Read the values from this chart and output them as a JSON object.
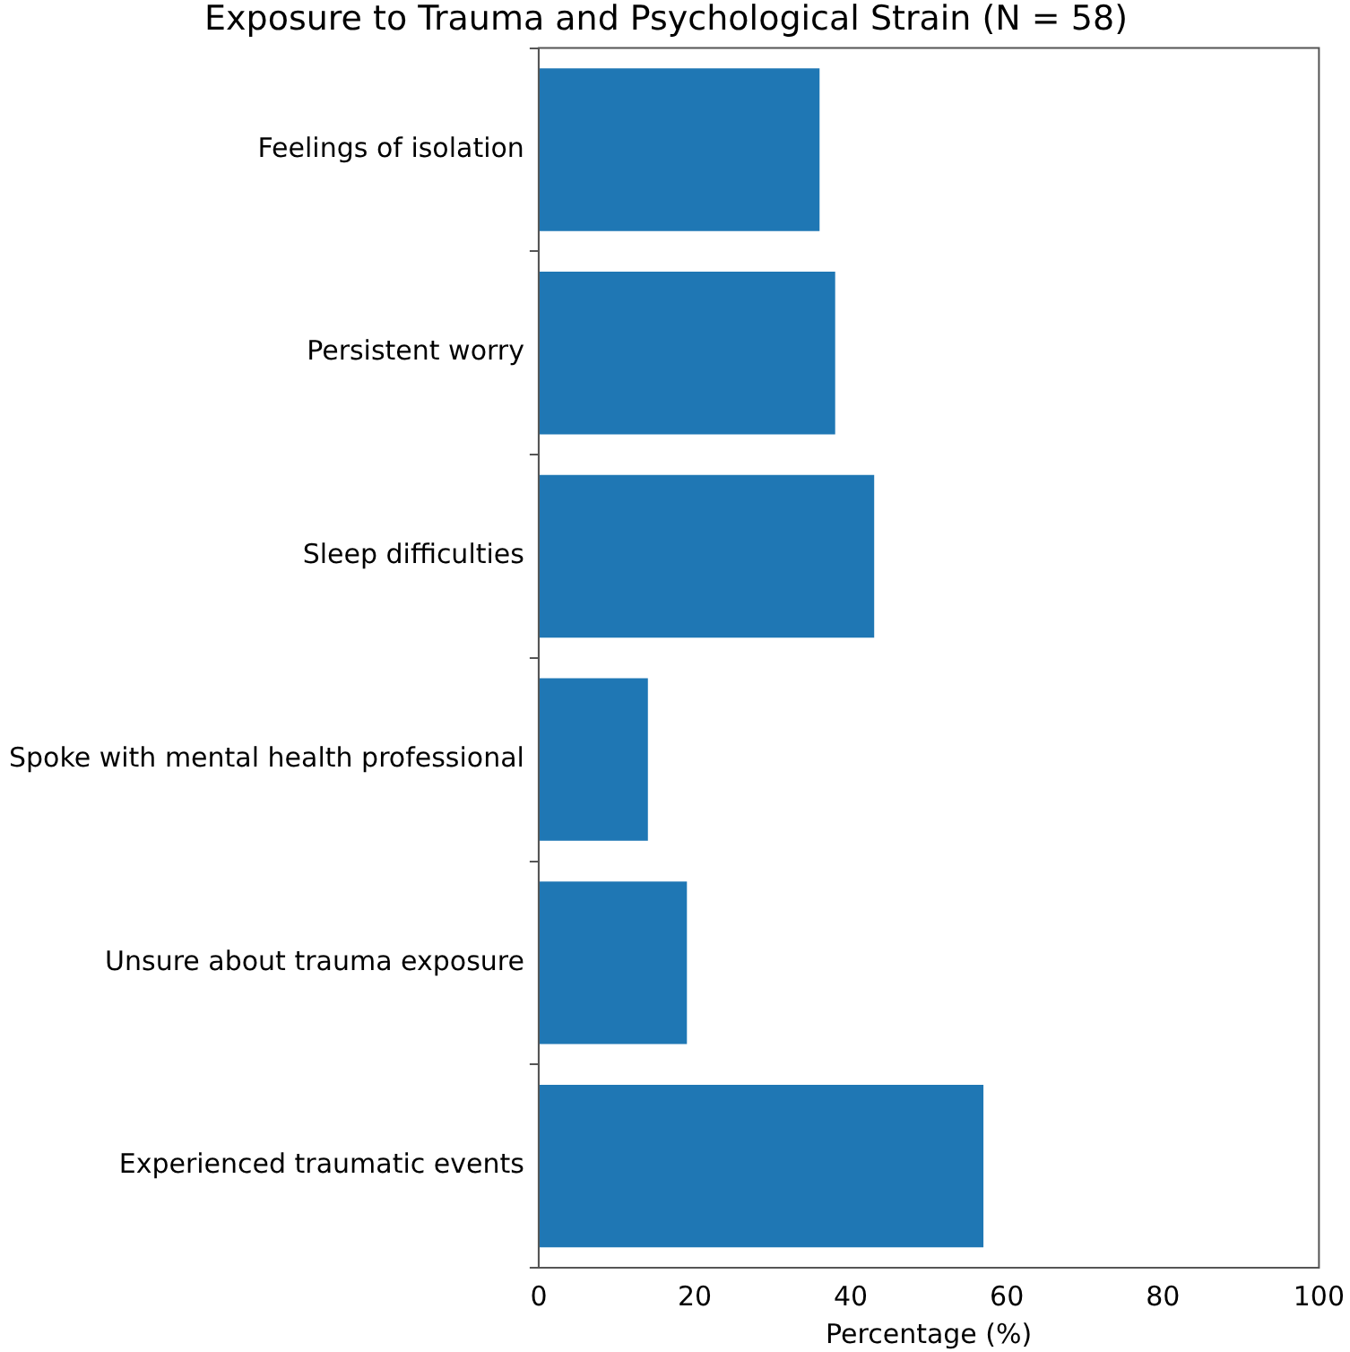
{
  "chart_data": {
    "type": "bar",
    "orientation": "horizontal",
    "title": "Exposure to Trauma and Psychological Strain (N = 58)",
    "xlabel": "Percentage (%)",
    "categories": [
      "Feelings of isolation",
      "Persistent worry",
      "Sleep difficulties",
      "Spoke with mental health professional",
      "Unsure about trauma exposure",
      "Experienced traumatic events"
    ],
    "values": [
      36,
      38,
      43,
      14,
      19,
      57
    ],
    "color": "#1f77b4",
    "xlim": [
      0,
      100
    ],
    "xticks": [
      0,
      20,
      40,
      60,
      80,
      100
    ],
    "grid": false,
    "legend": false
  }
}
